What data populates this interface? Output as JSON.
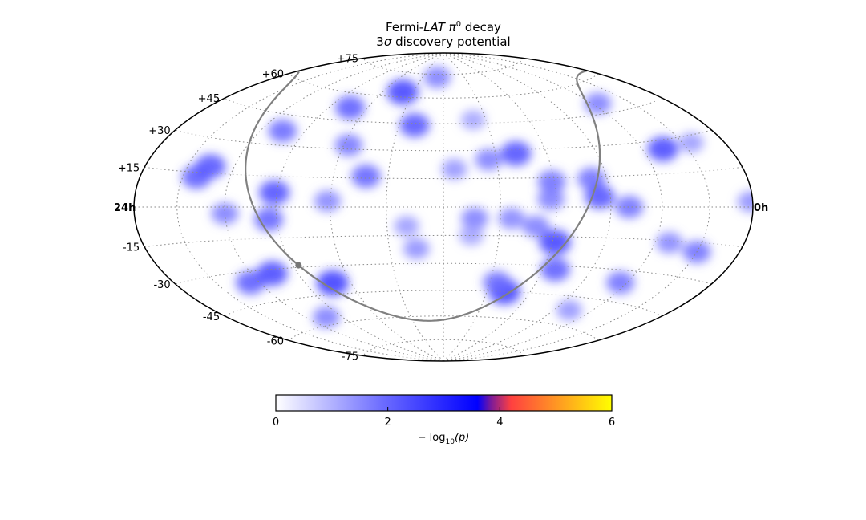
{
  "chart_data": {
    "type": "heatmap",
    "projection": "hammer-aitoff",
    "title_line1_text": "Fermi-",
    "title_line1_italic": "LAT",
    "title_line1_pi": "π",
    "title_line1_sup": "0",
    "title_line1_rest": "decay",
    "title_line2_sigma_prefix": "3",
    "title_line2_sigma": "σ",
    "title_line2_rest": "discovery potential",
    "ra_left_label": "24h",
    "ra_right_label": "0h",
    "dec_labels": [
      "+75",
      "+60",
      "+45",
      "+30",
      "+15",
      "-15",
      "-30",
      "-45",
      "-60",
      "-75"
    ],
    "dec_values": [
      75,
      60,
      45,
      30,
      15,
      -15,
      -30,
      -45,
      -60,
      -75
    ],
    "grid": true,
    "colorbar": {
      "range": [
        0,
        6
      ],
      "ticks": [
        "0",
        "2",
        "4",
        "6"
      ],
      "tick_values": [
        0,
        2,
        4,
        6
      ],
      "label_prefix": "− log",
      "label_sub": "10",
      "label_arg": "(p)",
      "colors": [
        "#ffffff",
        "#6b6bff",
        "#0000ff",
        "#ff4040",
        "#ffa020",
        "#ffff00"
      ]
    },
    "galactic_plane_color": "#808080",
    "hotspots": [
      {
        "ra": 12.6,
        "dec": 73.0,
        "sig": 1.8
      },
      {
        "ra": 14.7,
        "dec": 63.0,
        "sig": 2.7
      },
      {
        "ra": 13.3,
        "dec": 44.0,
        "sig": 2.4
      },
      {
        "ra": 16.9,
        "dec": 52.0,
        "sig": 2.3
      },
      {
        "ra": 19.0,
        "dec": 37.0,
        "sig": 2.1
      },
      {
        "ra": 21.0,
        "dec": 18.0,
        "sig": 2.4
      },
      {
        "ra": 21.4,
        "dec": 13.0,
        "sig": 2.3
      },
      {
        "ra": 18.1,
        "dec": 7.0,
        "sig": 2.5
      },
      {
        "ra": 18.3,
        "dec": -6.0,
        "sig": 2.2
      },
      {
        "ra": 20.0,
        "dec": -3.0,
        "sig": 1.8
      },
      {
        "ra": 19.1,
        "dec": -32.0,
        "sig": 2.6
      },
      {
        "ra": 16.8,
        "dec": -39.0,
        "sig": 2.8
      },
      {
        "ra": 20.4,
        "dec": -35.0,
        "sig": 2.3
      },
      {
        "ra": 18.9,
        "dec": -56.0,
        "sig": 1.8
      },
      {
        "ra": 15.8,
        "dec": 32.0,
        "sig": 1.9
      },
      {
        "ra": 14.8,
        "dec": 16.0,
        "sig": 2.2
      },
      {
        "ra": 16.1,
        "dec": 3.0,
        "sig": 1.7
      },
      {
        "ra": 13.3,
        "dec": -10.0,
        "sig": 1.4
      },
      {
        "ra": 13.0,
        "dec": -22.0,
        "sig": 1.6
      },
      {
        "ra": 10.3,
        "dec": 25.0,
        "sig": 1.8
      },
      {
        "ra": 9.2,
        "dec": 28.0,
        "sig": 2.5
      },
      {
        "ra": 8.1,
        "dec": 13.0,
        "sig": 2.0
      },
      {
        "ra": 8.2,
        "dec": 4.0,
        "sig": 1.8
      },
      {
        "ra": 8.7,
        "dec": -10.0,
        "sig": 1.8
      },
      {
        "ra": 7.9,
        "dec": -18.0,
        "sig": 2.7
      },
      {
        "ra": 7.5,
        "dec": -32.0,
        "sig": 2.3
      },
      {
        "ra": 9.6,
        "dec": -6.0,
        "sig": 1.7
      },
      {
        "ra": 10.9,
        "dec": -6.0,
        "sig": 1.8
      },
      {
        "ra": 9.2,
        "dec": -45.0,
        "sig": 2.8
      },
      {
        "ra": 9.7,
        "dec": -40.0,
        "sig": 2.0
      },
      {
        "ra": 6.6,
        "dec": 14.0,
        "sig": 2.0
      },
      {
        "ra": 6.4,
        "dec": 5.0,
        "sig": 2.4
      },
      {
        "ra": 5.3,
        "dec": 0.0,
        "sig": 2.0
      },
      {
        "ra": 3.1,
        "dec": 26.0,
        "sig": 2.6
      },
      {
        "ra": 3.7,
        "dec": 50.0,
        "sig": 1.8
      },
      {
        "ra": 1.6,
        "dec": 27.0,
        "sig": 1.4
      },
      {
        "ra": 0.1,
        "dec": 2.0,
        "sig": 1.6
      },
      {
        "ra": 3.4,
        "dec": -16.0,
        "sig": 1.7
      },
      {
        "ra": 2.0,
        "dec": -19.0,
        "sig": 2.0
      },
      {
        "ra": 4.3,
        "dec": -36.0,
        "sig": 2.0
      },
      {
        "ra": 5.2,
        "dec": -52.0,
        "sig": 1.5
      },
      {
        "ra": 11.6,
        "dec": 20.0,
        "sig": 1.5
      },
      {
        "ra": 10.6,
        "dec": 47.0,
        "sig": 1.3
      },
      {
        "ra": 11.0,
        "dec": -15.0,
        "sig": 1.3
      }
    ]
  }
}
